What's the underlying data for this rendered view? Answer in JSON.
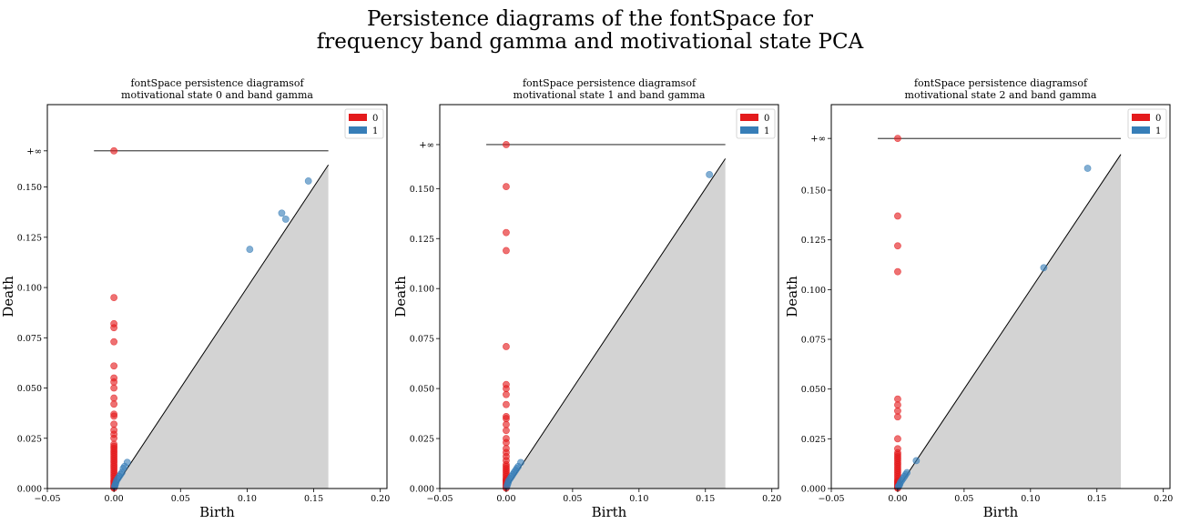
{
  "figure": {
    "title_line1": "Persistence diagrams of the fontSpace for",
    "title_line2": "frequency band gamma and motivational state PCA"
  },
  "colors": {
    "dim0": "#e41a1c",
    "dim1": "#377eb8",
    "diag_fill": "#d3d3d3",
    "line": "#000000"
  },
  "chart_data": [
    {
      "type": "scatter",
      "title_line1": "fontSpace persistence diagramsof",
      "title_line2": "motivational state 0 and band gamma",
      "xlabel": "Birth",
      "ylabel": "Death",
      "xlim": [
        -0.05,
        0.205
      ],
      "ylim": [
        0.0,
        0.191
      ],
      "infinity_y": 0.168,
      "infinity_label": "+∞",
      "diagonal_max": 0.161,
      "xticks": [
        "−0.05",
        "0.00",
        "0.05",
        "0.10",
        "0.15",
        "0.20"
      ],
      "xtick_values": [
        -0.05,
        0.0,
        0.05,
        0.1,
        0.15,
        0.2
      ],
      "yticks": [
        "0.000",
        "0.025",
        "0.050",
        "0.075",
        "0.100",
        "0.125",
        "0.150"
      ],
      "ytick_values": [
        0.0,
        0.025,
        0.05,
        0.075,
        0.1,
        0.125,
        0.15
      ],
      "legend": [
        "0",
        "1"
      ],
      "legend_position": "top-right",
      "series": [
        {
          "name": "0",
          "x": [
            0,
            0,
            0,
            0,
            0,
            0,
            0,
            0,
            0,
            0,
            0,
            0,
            0,
            0,
            0,
            0,
            0,
            0,
            0,
            0,
            0,
            0,
            0,
            0,
            0,
            0,
            0,
            0,
            0,
            0,
            0,
            0,
            0,
            0,
            0,
            0,
            0,
            0,
            0,
            0,
            0,
            0,
            0,
            0,
            0
          ],
          "y": [
            0.168,
            0.095,
            0.082,
            0.08,
            0.073,
            0.061,
            0.055,
            0.053,
            0.05,
            0.045,
            0.042,
            0.037,
            0.036,
            0.032,
            0.029,
            0.027,
            0.025,
            0.022,
            0.021,
            0.02,
            0.019,
            0.018,
            0.017,
            0.016,
            0.015,
            0.014,
            0.013,
            0.012,
            0.011,
            0.01,
            0.009,
            0.008,
            0.007,
            0.006,
            0.005,
            0.004,
            0.0035,
            0.003,
            0.0025,
            0.002,
            0.0015,
            0.001,
            0.0008,
            0.0005,
            0.0002
          ]
        },
        {
          "name": "1",
          "x": [
            0.146,
            0.126,
            0.129,
            0.102,
            0.01,
            0.008,
            0.007,
            0.006,
            0.005,
            0.004,
            0.003,
            0.002,
            0.0015,
            0.001,
            0.0008,
            0.0005
          ],
          "y": [
            0.153,
            0.137,
            0.134,
            0.119,
            0.013,
            0.011,
            0.01,
            0.008,
            0.007,
            0.006,
            0.005,
            0.004,
            0.003,
            0.002,
            0.0015,
            0.001
          ]
        }
      ]
    },
    {
      "type": "scatter",
      "title_line1": "fontSpace persistence diagramsof",
      "title_line2": "motivational state 1 and band gamma",
      "xlabel": "Birth",
      "ylabel": "Death",
      "xlim": [
        -0.05,
        0.205
      ],
      "ylim": [
        0.0,
        0.192
      ],
      "infinity_y": 0.172,
      "infinity_label": "+∞",
      "diagonal_max": 0.165,
      "xticks": [
        "−0.05",
        "0.00",
        "0.05",
        "0.10",
        "0.15",
        "0.20"
      ],
      "xtick_values": [
        -0.05,
        0.0,
        0.05,
        0.1,
        0.15,
        0.2
      ],
      "yticks": [
        "0.000",
        "0.025",
        "0.050",
        "0.075",
        "0.100",
        "0.125",
        "0.150"
      ],
      "ytick_values": [
        0.0,
        0.025,
        0.05,
        0.075,
        0.1,
        0.125,
        0.15
      ],
      "legend": [
        "0",
        "1"
      ],
      "legend_position": "top-right",
      "series": [
        {
          "name": "0",
          "x": [
            0,
            0,
            0,
            0,
            0,
            0,
            0,
            0,
            0,
            0,
            0,
            0,
            0,
            0,
            0,
            0,
            0,
            0,
            0,
            0,
            0,
            0,
            0,
            0,
            0,
            0,
            0,
            0,
            0,
            0,
            0,
            0,
            0,
            0,
            0,
            0,
            0
          ],
          "y": [
            0.172,
            0.151,
            0.128,
            0.119,
            0.071,
            0.052,
            0.05,
            0.047,
            0.042,
            0.036,
            0.035,
            0.032,
            0.029,
            0.025,
            0.023,
            0.02,
            0.018,
            0.016,
            0.014,
            0.012,
            0.011,
            0.01,
            0.009,
            0.008,
            0.007,
            0.006,
            0.005,
            0.0045,
            0.004,
            0.0035,
            0.003,
            0.0025,
            0.002,
            0.0015,
            0.001,
            0.0005,
            0.0002
          ]
        },
        {
          "name": "1",
          "x": [
            0.153,
            0.011,
            0.009,
            0.008,
            0.007,
            0.006,
            0.005,
            0.004,
            0.003,
            0.002,
            0.0015,
            0.001,
            0.0005
          ],
          "y": [
            0.157,
            0.013,
            0.011,
            0.01,
            0.009,
            0.008,
            0.007,
            0.006,
            0.005,
            0.004,
            0.003,
            0.002,
            0.001
          ]
        }
      ]
    },
    {
      "type": "scatter",
      "title_line1": "fontSpace persistence diagramsof",
      "title_line2": "motivational state 2 and band gamma",
      "xlabel": "Birth",
      "ylabel": "Death",
      "xlim": [
        -0.05,
        0.205
      ],
      "ylim": [
        0.0,
        0.193
      ],
      "infinity_y": 0.176,
      "infinity_label": "+∞",
      "diagonal_max": 0.168,
      "xticks": [
        "−0.05",
        "0.00",
        "0.05",
        "0.10",
        "0.15",
        "0.20"
      ],
      "xtick_values": [
        -0.05,
        0.0,
        0.05,
        0.1,
        0.15,
        0.2
      ],
      "yticks": [
        "0.000",
        "0.025",
        "0.050",
        "0.075",
        "0.100",
        "0.125",
        "0.150"
      ],
      "ytick_values": [
        0.0,
        0.025,
        0.05,
        0.075,
        0.1,
        0.125,
        0.15
      ],
      "legend": [
        "0",
        "1"
      ],
      "legend_position": "top-right",
      "series": [
        {
          "name": "0",
          "x": [
            0,
            0,
            0,
            0,
            0,
            0,
            0,
            0,
            0,
            0,
            0,
            0,
            0,
            0,
            0,
            0,
            0,
            0,
            0,
            0,
            0,
            0,
            0,
            0,
            0,
            0,
            0,
            0,
            0,
            0,
            0,
            0,
            0,
            0
          ],
          "y": [
            0.176,
            0.137,
            0.122,
            0.109,
            0.045,
            0.042,
            0.039,
            0.036,
            0.025,
            0.02,
            0.018,
            0.017,
            0.016,
            0.015,
            0.014,
            0.013,
            0.012,
            0.011,
            0.01,
            0.009,
            0.008,
            0.007,
            0.006,
            0.005,
            0.004,
            0.0035,
            0.003,
            0.0025,
            0.002,
            0.0015,
            0.001,
            0.0008,
            0.0005,
            0.0002
          ]
        },
        {
          "name": "1",
          "x": [
            0.143,
            0.11,
            0.014,
            0.007,
            0.006,
            0.005,
            0.004,
            0.003,
            0.002,
            0.0015,
            0.001,
            0.0005
          ],
          "y": [
            0.161,
            0.111,
            0.014,
            0.008,
            0.007,
            0.006,
            0.005,
            0.004,
            0.003,
            0.002,
            0.0015,
            0.001
          ]
        }
      ]
    }
  ]
}
